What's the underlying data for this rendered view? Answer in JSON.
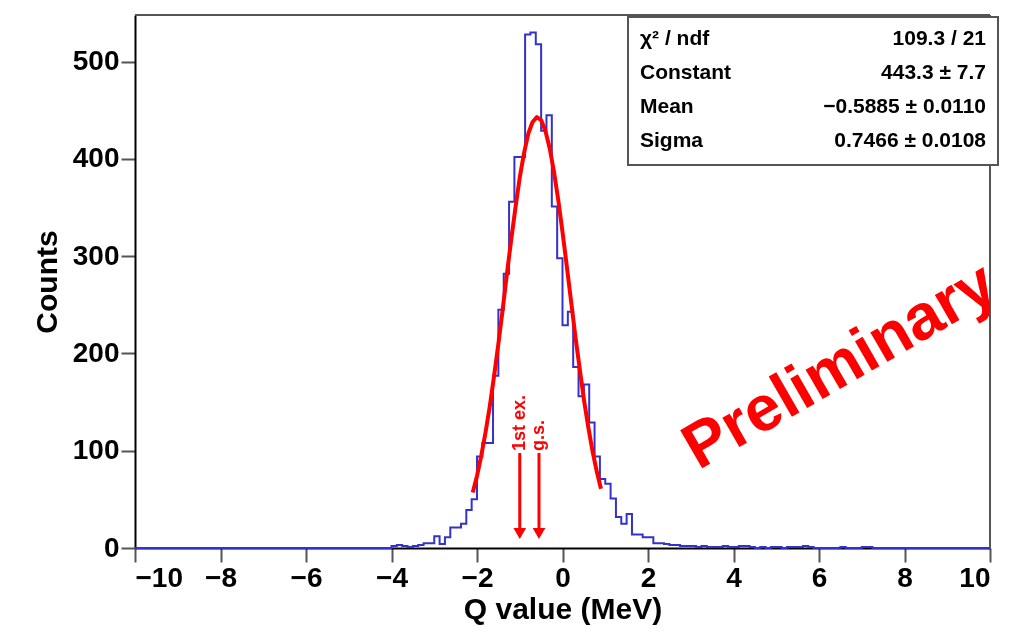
{
  "chart_data": {
    "type": "histogram",
    "xlabel": "Q value (MeV)",
    "ylabel": "Counts",
    "xlim": [
      -10,
      10
    ],
    "ylim": [
      0,
      548
    ],
    "xticks": [
      {
        "value": -10,
        "label": "−10"
      },
      {
        "value": -8,
        "label": "−8"
      },
      {
        "value": -6,
        "label": "−6"
      },
      {
        "value": -4,
        "label": "−4"
      },
      {
        "value": -2,
        "label": "−2"
      },
      0,
      2,
      4,
      6,
      8,
      10
    ],
    "yticks": [
      0,
      100,
      200,
      300,
      400,
      500
    ],
    "grid": false,
    "series": [
      {
        "color": "#3333cc",
        "bins": [
          -10,
          -9.875,
          -9.75,
          -9.625,
          -9.5,
          -9.375,
          -9.25,
          -9.125,
          -9,
          -8.875,
          -8.75,
          -8.625,
          -8.5,
          -8.375,
          -8.25,
          -8.125,
          -8,
          -7.875,
          -7.75,
          -7.625,
          -7.5,
          -7.375,
          -7.25,
          -7.125,
          -7,
          -6.875,
          -6.75,
          -6.625,
          -6.5,
          -6.375,
          -6.25,
          -6.125,
          -6,
          -5.875,
          -5.75,
          -5.625,
          -5.5,
          -5.375,
          -5.25,
          -5.125,
          -5,
          -4.875,
          -4.75,
          -4.625,
          -4.5,
          -4.375,
          -4.25,
          -4.125,
          -4,
          -3.875,
          -3.75,
          -3.625,
          -3.5,
          -3.375,
          -3.25,
          -3.125,
          -3,
          -2.875,
          -2.75,
          -2.625,
          -2.5,
          -2.375,
          -2.25,
          -2.125,
          -2,
          -1.875,
          -1.75,
          -1.625,
          -1.5,
          -1.375,
          -1.25,
          -1.125,
          -1,
          -0.875,
          -0.75,
          -0.625,
          -0.5,
          -0.375,
          -0.25,
          -0.125,
          0,
          0.125,
          0.25,
          0.375,
          0.5,
          0.625,
          0.75,
          0.875,
          1,
          1.125,
          1.25,
          1.375,
          1.5,
          1.625,
          1.75,
          1.875,
          2,
          2.125,
          2.25,
          2.375,
          2.5,
          2.625,
          2.75,
          2.875,
          3,
          3.125,
          3.25,
          3.375,
          3.5,
          3.625,
          3.75,
          3.875,
          4,
          4.125,
          4.25,
          4.375,
          4.5,
          4.625,
          4.75,
          4.875,
          5,
          5.125,
          5.25,
          5.375,
          5.5,
          5.625,
          5.75,
          5.875,
          6,
          6.125,
          6.25,
          6.375,
          6.5,
          6.625,
          6.75,
          6.875,
          7,
          7.125,
          7.25,
          7.375,
          7.5,
          7.625,
          7.75,
          7.875,
          8,
          8.125,
          8.25,
          8.375,
          8.5,
          8.625,
          8.75,
          8.875,
          9,
          9.125,
          9.25,
          9.375,
          9.5,
          9.625,
          9.75,
          9.875,
          10
        ],
        "values": [
          0,
          0,
          0,
          0,
          0,
          0,
          0,
          0,
          0,
          0,
          0,
          0,
          0,
          0,
          0,
          0,
          0,
          0,
          0,
          0,
          0,
          0,
          0,
          0,
          0,
          0,
          0,
          0,
          0,
          0,
          0,
          0,
          0,
          0,
          0,
          0,
          0,
          0,
          0,
          0,
          0,
          0,
          0,
          0,
          0,
          0,
          0,
          0,
          2,
          3,
          2,
          1,
          2,
          3,
          5,
          5,
          12,
          4,
          11,
          21,
          21,
          25,
          39,
          50,
          94,
          108,
          108,
          177,
          245,
          282,
          356,
          402,
          402,
          528,
          530,
          518,
          429,
          445,
          351,
          298,
          229,
          243,
          186,
          156,
          168,
          129,
          94,
          71,
          66,
          51,
          32,
          25,
          35,
          14,
          14,
          11,
          11,
          5,
          5,
          4,
          3,
          3,
          2,
          2,
          2,
          1,
          2,
          1,
          1,
          1,
          2,
          1,
          1,
          2,
          2,
          1,
          0,
          1,
          0,
          1,
          1,
          0,
          1,
          1,
          1,
          2,
          1,
          0,
          0,
          0,
          0,
          0,
          1,
          0,
          0,
          0,
          1,
          1,
          0,
          0,
          0,
          0,
          0,
          0,
          0,
          0,
          0,
          0,
          0,
          0,
          0,
          0,
          0,
          0,
          0,
          0,
          0,
          0,
          0,
          0
        ]
      },
      {
        "type": "line",
        "color": "#ff0000",
        "x": [
          -2.1,
          -2.0,
          -1.9,
          -1.8,
          -1.7,
          -1.6,
          -1.5,
          -1.4,
          -1.3,
          -1.2,
          -1.1,
          -1.0,
          -0.9,
          -0.8,
          -0.7,
          -0.6,
          -0.5,
          -0.4,
          -0.3,
          -0.2,
          -0.1,
          0,
          0.1,
          0.2,
          0.3,
          0.4,
          0.5,
          0.6,
          0.7,
          0.8,
          0.9
        ],
        "values": [
          57,
          74,
          95,
          119,
          146,
          177,
          210,
          245,
          282,
          317,
          350,
          381,
          406,
          426,
          438,
          443,
          440,
          429,
          411,
          387,
          358,
          325,
          290,
          254,
          218,
          185,
          153,
          125,
          100,
          79,
          61
        ]
      }
    ],
    "annotations": [
      "χ² / ndf",
      "109.3 / 21",
      "Constant",
      "443.3 ± 7.7",
      "Mean",
      "−0.5885 ± 0.0110",
      "Sigma",
      "0.7466 ± 0.0108",
      "Preliminary",
      {
        "text": "1st ex.",
        "x": -1.0,
        "y": 15
      },
      {
        "text": "g.s.",
        "x": -0.55,
        "y": 15
      }
    ]
  }
}
